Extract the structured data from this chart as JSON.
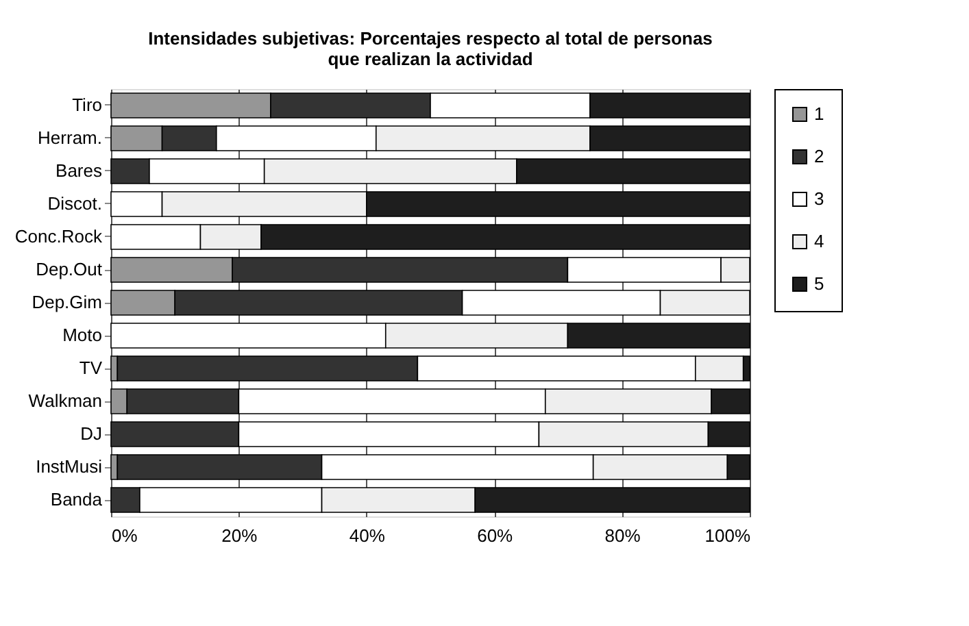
{
  "chart_data": {
    "type": "bar",
    "orientation": "horizontal",
    "stacked": true,
    "title": "Intensidades subjetivas: Porcentajes respecto al total de personas\nque realizan la actividad",
    "categories": [
      "Tiro",
      "Herram.",
      "Bares",
      "Discot.",
      "Conc.Rock",
      "Dep.Out",
      "Dep.Gim",
      "Moto",
      "TV",
      "Walkman",
      "DJ",
      "InstMusi",
      "Banda"
    ],
    "series": [
      {
        "name": "1",
        "color": "#969696",
        "values": [
          25,
          8,
          0,
          0,
          0,
          19,
          10,
          0,
          1,
          2.5,
          0,
          1,
          0
        ]
      },
      {
        "name": "2",
        "color": "#333333",
        "values": [
          25,
          8.5,
          6,
          0,
          0,
          52.5,
          45,
          0,
          47,
          17.5,
          20,
          32,
          4.5
        ]
      },
      {
        "name": "3",
        "color": "#ffffff",
        "values": [
          25,
          25,
          18,
          8,
          14,
          24,
          31,
          43,
          43.5,
          48,
          47,
          42.5,
          28.5
        ]
      },
      {
        "name": "4",
        "color": "#eeeeee",
        "values": [
          0,
          33.5,
          39.5,
          32,
          9.5,
          4.5,
          14,
          28.5,
          7.5,
          26,
          26.5,
          21,
          24
        ]
      },
      {
        "name": "5",
        "color": "#1e1e1e",
        "values": [
          25,
          25,
          36.5,
          60,
          76.5,
          0,
          0,
          28.5,
          1,
          6,
          6.5,
          3.5,
          43
        ]
      }
    ],
    "xlim": [
      0,
      100
    ],
    "xticks": [
      {
        "value": 0,
        "label": "0%"
      },
      {
        "value": 20,
        "label": "20%"
      },
      {
        "value": 40,
        "label": "40%"
      },
      {
        "value": 60,
        "label": "60%"
      },
      {
        "value": 80,
        "label": "80%"
      },
      {
        "value": 100,
        "label": "100%"
      }
    ],
    "grid": "x",
    "legend": "right"
  }
}
